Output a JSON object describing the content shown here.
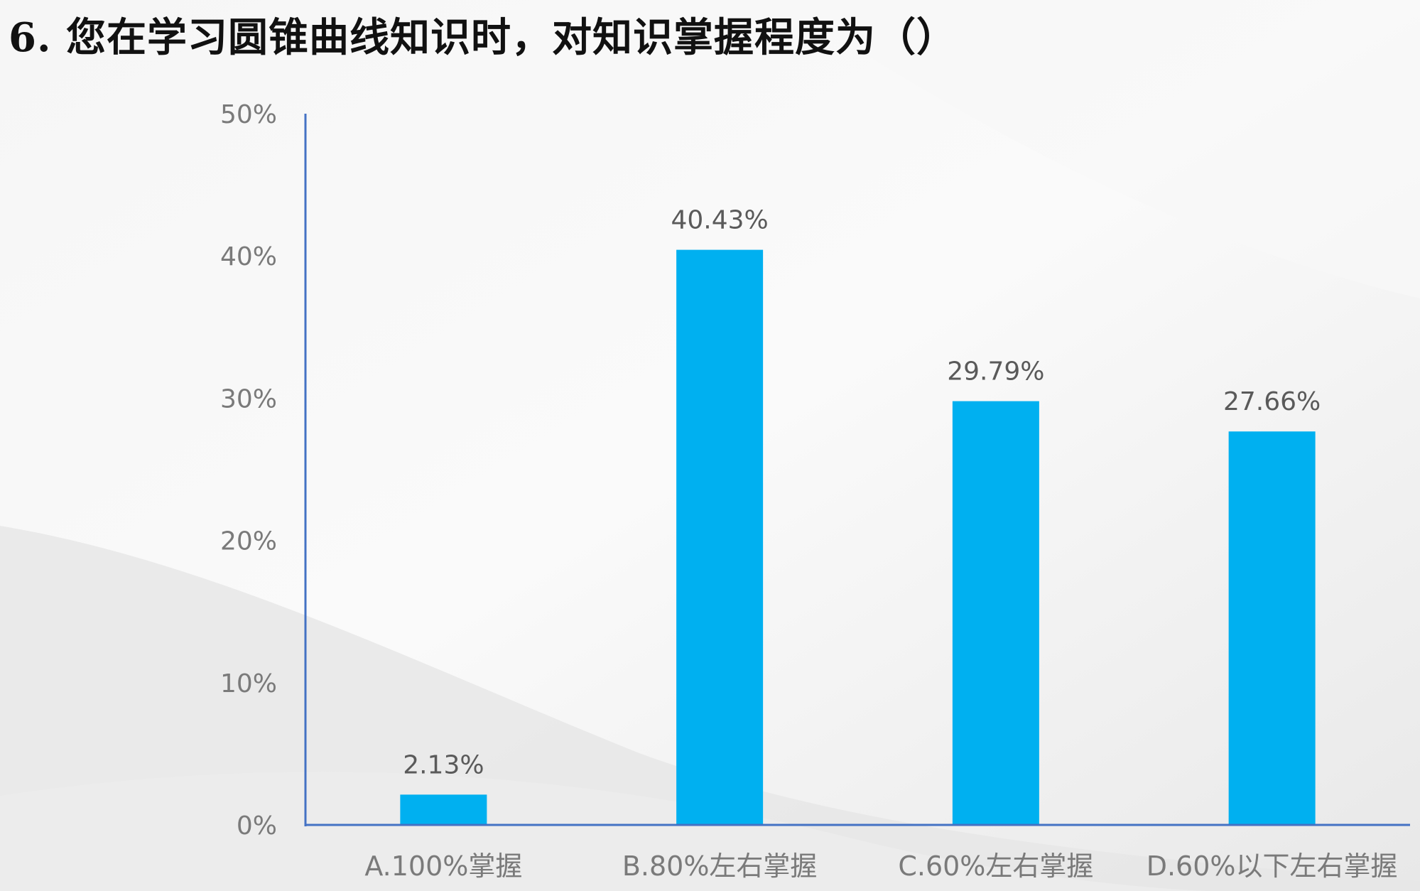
{
  "title": "6. 您在学习圆锥曲线知识时，对知识掌握程度为（）",
  "colors": {
    "bar": "#00b0f0",
    "axis": "#4472c4",
    "tick_text": "#7a7a7a",
    "label_text": "#5a5a5a"
  },
  "chart_data": {
    "type": "bar",
    "title": "6. 您在学习圆锥曲线知识时，对知识掌握程度为（）",
    "categories": [
      "A.100%掌握",
      "B.80%左右掌握",
      "C.60%左右掌握",
      "D.60%以下左右掌握"
    ],
    "values": [
      2.13,
      40.43,
      29.79,
      27.66
    ],
    "value_labels": [
      "2.13%",
      "40.43%",
      "29.79%",
      "27.66%"
    ],
    "xlabel": "",
    "ylabel": "",
    "ylim": [
      0,
      50
    ],
    "yticks": [
      0,
      10,
      20,
      30,
      40,
      50
    ],
    "ytick_labels": [
      "0%",
      "10%",
      "20%",
      "30%",
      "40%",
      "50%"
    ],
    "grid": false,
    "legend": "none"
  }
}
